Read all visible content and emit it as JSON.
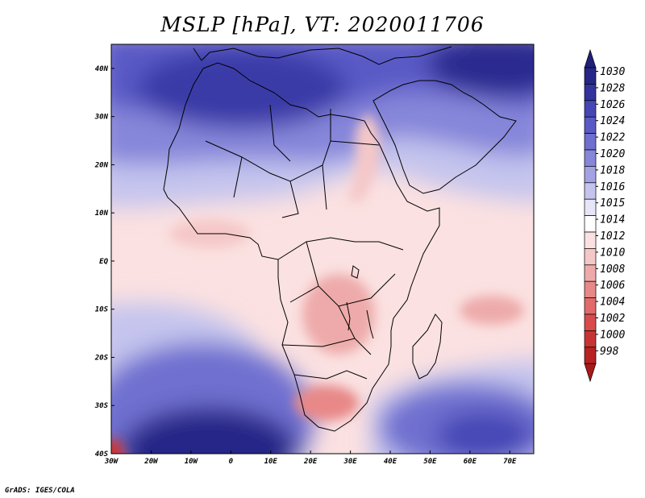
{
  "title": "MSLP [hPa], VT: 2020011706",
  "credit": "GrADS: IGES/COLA",
  "map": {
    "lon_range": [
      -30,
      76
    ],
    "lat_range": [
      -40,
      45
    ],
    "lon_ticks": [
      {
        "value": -30,
        "label": "30W"
      },
      {
        "value": -20,
        "label": "20W"
      },
      {
        "value": -10,
        "label": "10W"
      },
      {
        "value": 0,
        "label": "0"
      },
      {
        "value": 10,
        "label": "10E"
      },
      {
        "value": 20,
        "label": "20E"
      },
      {
        "value": 30,
        "label": "30E"
      },
      {
        "value": 40,
        "label": "40E"
      },
      {
        "value": 50,
        "label": "50E"
      },
      {
        "value": 60,
        "label": "60E"
      },
      {
        "value": 70,
        "label": "70E"
      }
    ],
    "lat_ticks": [
      {
        "value": 40,
        "label": "40N"
      },
      {
        "value": 30,
        "label": "30N"
      },
      {
        "value": 20,
        "label": "20N"
      },
      {
        "value": 10,
        "label": "10N"
      },
      {
        "value": 0,
        "label": "EQ"
      },
      {
        "value": -10,
        "label": "10S"
      },
      {
        "value": -20,
        "label": "20S"
      },
      {
        "value": -30,
        "label": "30S"
      },
      {
        "value": -40,
        "label": "40S"
      }
    ]
  },
  "colorbar": {
    "levels": [
      "1030",
      "1028",
      "1026",
      "1024",
      "1022",
      "1020",
      "1018",
      "1016",
      "1015",
      "1014",
      "1012",
      "1010",
      "1008",
      "1006",
      "1004",
      "1002",
      "1000",
      "998"
    ],
    "colors": [
      "#262688",
      "#33339e",
      "#4646b6",
      "#5a5ac6",
      "#6f6fd0",
      "#8686da",
      "#a3a3e4",
      "#c4c4ee",
      "#e6e6f8",
      "#ffffff",
      "#fbe1e1",
      "#f5c8c8",
      "#eeaaaa",
      "#e88888",
      "#e26a6a",
      "#d94b4b",
      "#c83434",
      "#b82222"
    ],
    "top_arrow": "#20207a",
    "bottom_arrow": "#a81a1a"
  },
  "pressure_systems": [
    {
      "name": "north-africa-high",
      "lon": 5,
      "lat": 33,
      "hpa": 1027
    },
    {
      "name": "arabia-high",
      "lon": 52,
      "lat": 38,
      "hpa": 1025
    },
    {
      "name": "south-atlantic-high",
      "lon": -2,
      "lat": -35,
      "hpa": 1030
    },
    {
      "name": "indian-ocean-high",
      "lon": 62,
      "lat": -33,
      "hpa": 1023
    },
    {
      "name": "congo-low",
      "lon": 22,
      "lat": -14,
      "hpa": 1008
    },
    {
      "name": "kalahari-low",
      "lon": 25,
      "lat": -27,
      "hpa": 1008
    },
    {
      "name": "mozambique-channel-low",
      "lon": 55,
      "lat": -11,
      "hpa": 1008
    },
    {
      "name": "red-sea-trough",
      "lon": 33,
      "lat": 18,
      "hpa": 1011
    },
    {
      "name": "cape-low",
      "lon": -28,
      "lat": -40,
      "hpa": 998
    }
  ]
}
